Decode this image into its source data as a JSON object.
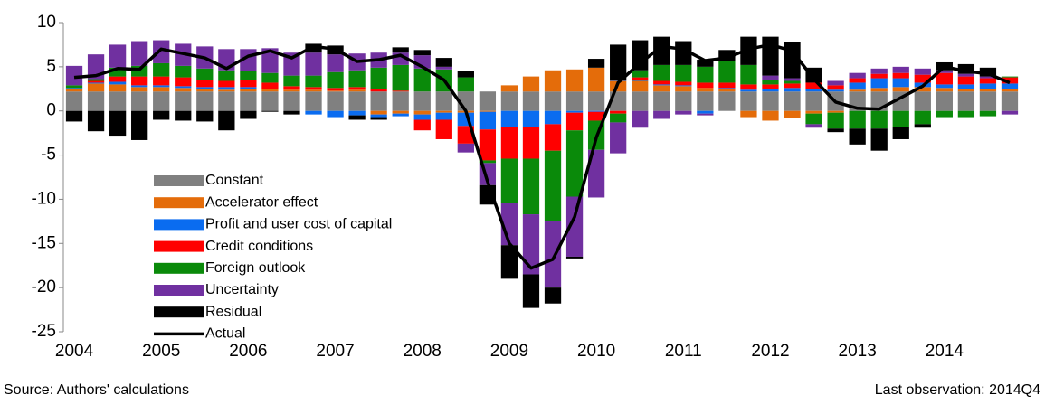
{
  "chart_data": {
    "type": "bar",
    "stacked": true,
    "categories": [
      "2004",
      null,
      null,
      null,
      "2005",
      null,
      null,
      null,
      "2006",
      null,
      null,
      null,
      "2007",
      null,
      null,
      null,
      "2008",
      null,
      null,
      null,
      "2009",
      null,
      null,
      null,
      "2010",
      null,
      null,
      null,
      "2011",
      null,
      null,
      null,
      "2012",
      null,
      null,
      null,
      "2013",
      null,
      null,
      null,
      "2014",
      null,
      null,
      null
    ],
    "ylim": [
      -25,
      10
    ],
    "yticks": [
      -25,
      -20,
      -15,
      -10,
      -5,
      0,
      5,
      10
    ],
    "legend": "lower left",
    "series": [
      {
        "name": "Constant",
        "color": "#808080",
        "values": [
          2.2,
          2.2,
          2.2,
          2.2,
          2.2,
          2.2,
          2.2,
          2.2,
          2.2,
          2.2,
          2.2,
          2.2,
          2.2,
          2.2,
          2.2,
          2.2,
          2.2,
          2.2,
          2.2,
          2.2,
          2.2,
          2.2,
          2.2,
          2.2,
          2.2,
          2.2,
          2.2,
          2.2,
          2.2,
          2.2,
          2.2,
          2.2,
          2.2,
          2.2,
          2.2,
          2.2,
          2.2,
          2.2,
          2.2,
          2.2,
          2.2,
          2.2,
          2.2,
          2.2
        ]
      },
      {
        "name": "Accelerator effect",
        "color": "#e46c0a",
        "values": [
          0.3,
          0.9,
          0.8,
          0.5,
          0.5,
          0.4,
          0.3,
          0.2,
          0.3,
          0.3,
          0.2,
          0.2,
          0.1,
          0.2,
          -0.4,
          -0.3,
          -0.4,
          -0.2,
          -0.2,
          -0.1,
          0.7,
          1.7,
          2.4,
          2.5,
          2.7,
          1.2,
          1.2,
          0.7,
          0.6,
          0.4,
          0.3,
          -0.7,
          -1.1,
          -0.8,
          -0.3,
          -0.2,
          0.2,
          0.4,
          0.5,
          0.5,
          0.4,
          0.3,
          0.3,
          0.3
        ]
      },
      {
        "name": "Profit and user cost of capital",
        "color": "#0a6cf0",
        "values": [
          0.1,
          0.1,
          0.3,
          0.2,
          0.2,
          0.2,
          0.2,
          0.3,
          0.2,
          0,
          0,
          -0.4,
          -0.7,
          -0.5,
          -0.3,
          -0.3,
          -0.6,
          -0.8,
          -1.5,
          -2.0,
          -1.8,
          -1.8,
          -1.5,
          -0.2,
          -0.1,
          0.1,
          0.1,
          0.1,
          0.1,
          -0.3,
          0.1,
          0.2,
          0.3,
          0.4,
          0.3,
          0.2,
          0.8,
          1.1,
          1.0,
          0.5,
          0.4,
          0.5,
          0.6,
          0.6
        ]
      },
      {
        "name": "Credit conditions",
        "color": "#ff0000",
        "values": [
          0,
          0.2,
          0.6,
          1.0,
          1.0,
          1.0,
          0.8,
          0.7,
          0.8,
          0.7,
          0.4,
          0.3,
          0.3,
          0.3,
          0.3,
          0.1,
          -1.2,
          -2.2,
          -2.0,
          -3.5,
          -3.6,
          -3.6,
          -3.0,
          -2.0,
          -1.0,
          -0.3,
          0.3,
          0.4,
          0.4,
          0.6,
          0.6,
          0.6,
          0.5,
          0.5,
          0.7,
          0.5,
          0.5,
          0.5,
          0.6,
          0.9,
          1.3,
          0.9,
          0.6,
          0.7
        ]
      },
      {
        "name": "Foreign outlook",
        "color": "#0a8a0a",
        "values": [
          0.3,
          0.2,
          1.0,
          1.2,
          1.5,
          1.3,
          1.3,
          1.2,
          1.0,
          1.1,
          1.2,
          1.3,
          1.8,
          1.9,
          2.4,
          2.9,
          2.6,
          2.5,
          1.6,
          -0.3,
          -5.0,
          -6.3,
          -8.0,
          -7.5,
          -3.3,
          -1.0,
          0.8,
          1.8,
          1.9,
          1.8,
          2.5,
          2.2,
          0.5,
          0.3,
          -1.2,
          -1.8,
          -2.0,
          -2.0,
          -1.8,
          -1.5,
          -0.7,
          -0.7,
          -0.6,
          0.1
        ]
      },
      {
        "name": "Uncertainty",
        "color": "#7030a0",
        "values": [
          2.2,
          2.8,
          2.6,
          2.8,
          2.6,
          2.5,
          2.5,
          2.4,
          2.5,
          2.8,
          2.6,
          2.6,
          2.0,
          1.9,
          1.7,
          1.4,
          1.5,
          0.3,
          -1.0,
          -2.5,
          -4.8,
          -6.8,
          -7.5,
          -6.8,
          -5.4,
          -3.5,
          -1.9,
          -0.9,
          -0.4,
          -0.2,
          0,
          0,
          0.5,
          0.3,
          -0.4,
          0.5,
          0.6,
          0.6,
          0.7,
          0.7,
          0.3,
          0.3,
          0.2,
          -0.4
        ]
      },
      {
        "name": "Residual",
        "color": "#000000",
        "values": [
          -1.2,
          -2.3,
          -2.8,
          -3.3,
          -1.0,
          -1.1,
          -1.2,
          -2.2,
          -0.9,
          -0.1,
          -0.4,
          1.0,
          1.0,
          -0.5,
          -0.3,
          0.6,
          0.6,
          1.0,
          0.7,
          -2.2,
          -3.8,
          -3.8,
          -1.8,
          -0.2,
          1.0,
          4.0,
          3.4,
          3.2,
          2.7,
          0.8,
          1.2,
          3.2,
          4.4,
          4.1,
          1.7,
          -0.4,
          -1.8,
          -2.5,
          -1.4,
          -0.4,
          0.9,
          1.1,
          1.0,
          0
        ]
      },
      {
        "name": "Actual",
        "type": "line",
        "color": "#000000",
        "values": [
          3.8,
          4.0,
          4.8,
          4.7,
          7.0,
          6.5,
          6.0,
          4.8,
          6.2,
          6.8,
          6.0,
          7.3,
          7.0,
          5.6,
          5.8,
          6.3,
          5.0,
          3.5,
          0,
          -8,
          -15,
          -17.8,
          -16.8,
          -12,
          -3,
          3.2,
          5.4,
          7.3,
          7.0,
          5.7,
          6.0,
          7.0,
          7.5,
          6.8,
          3.6,
          1.0,
          0.3,
          0.2,
          1.5,
          2.8,
          5.0,
          4.5,
          4.2,
          3.2
        ]
      }
    ],
    "source": "Source: Authors' calculations",
    "note": "Last observation: 2014Q4"
  }
}
